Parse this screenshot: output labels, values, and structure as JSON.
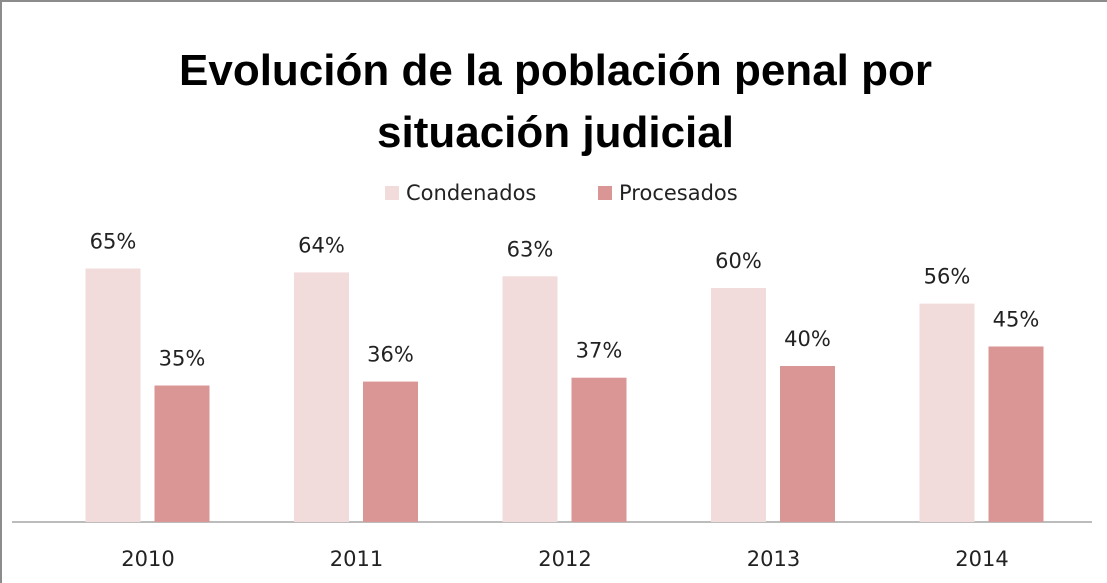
{
  "chart_data": {
    "type": "bar",
    "title": "Evolución de la población penal por situación judicial",
    "categories": [
      "2010",
      "2011",
      "2012",
      "2013",
      "2014"
    ],
    "series": [
      {
        "name": "Condenados",
        "color": "#f2dcdb",
        "values": [
          65,
          64,
          63,
          60,
          56
        ],
        "value_labels": [
          "65%",
          "64%",
          "63%",
          "60%",
          "56%"
        ]
      },
      {
        "name": "Procesados",
        "color": "#d99694",
        "values": [
          35,
          36,
          37,
          40,
          45
        ],
        "value_labels": [
          "35%",
          "36%",
          "37%",
          "40%",
          "45%"
        ]
      }
    ],
    "legend": "top"
  }
}
